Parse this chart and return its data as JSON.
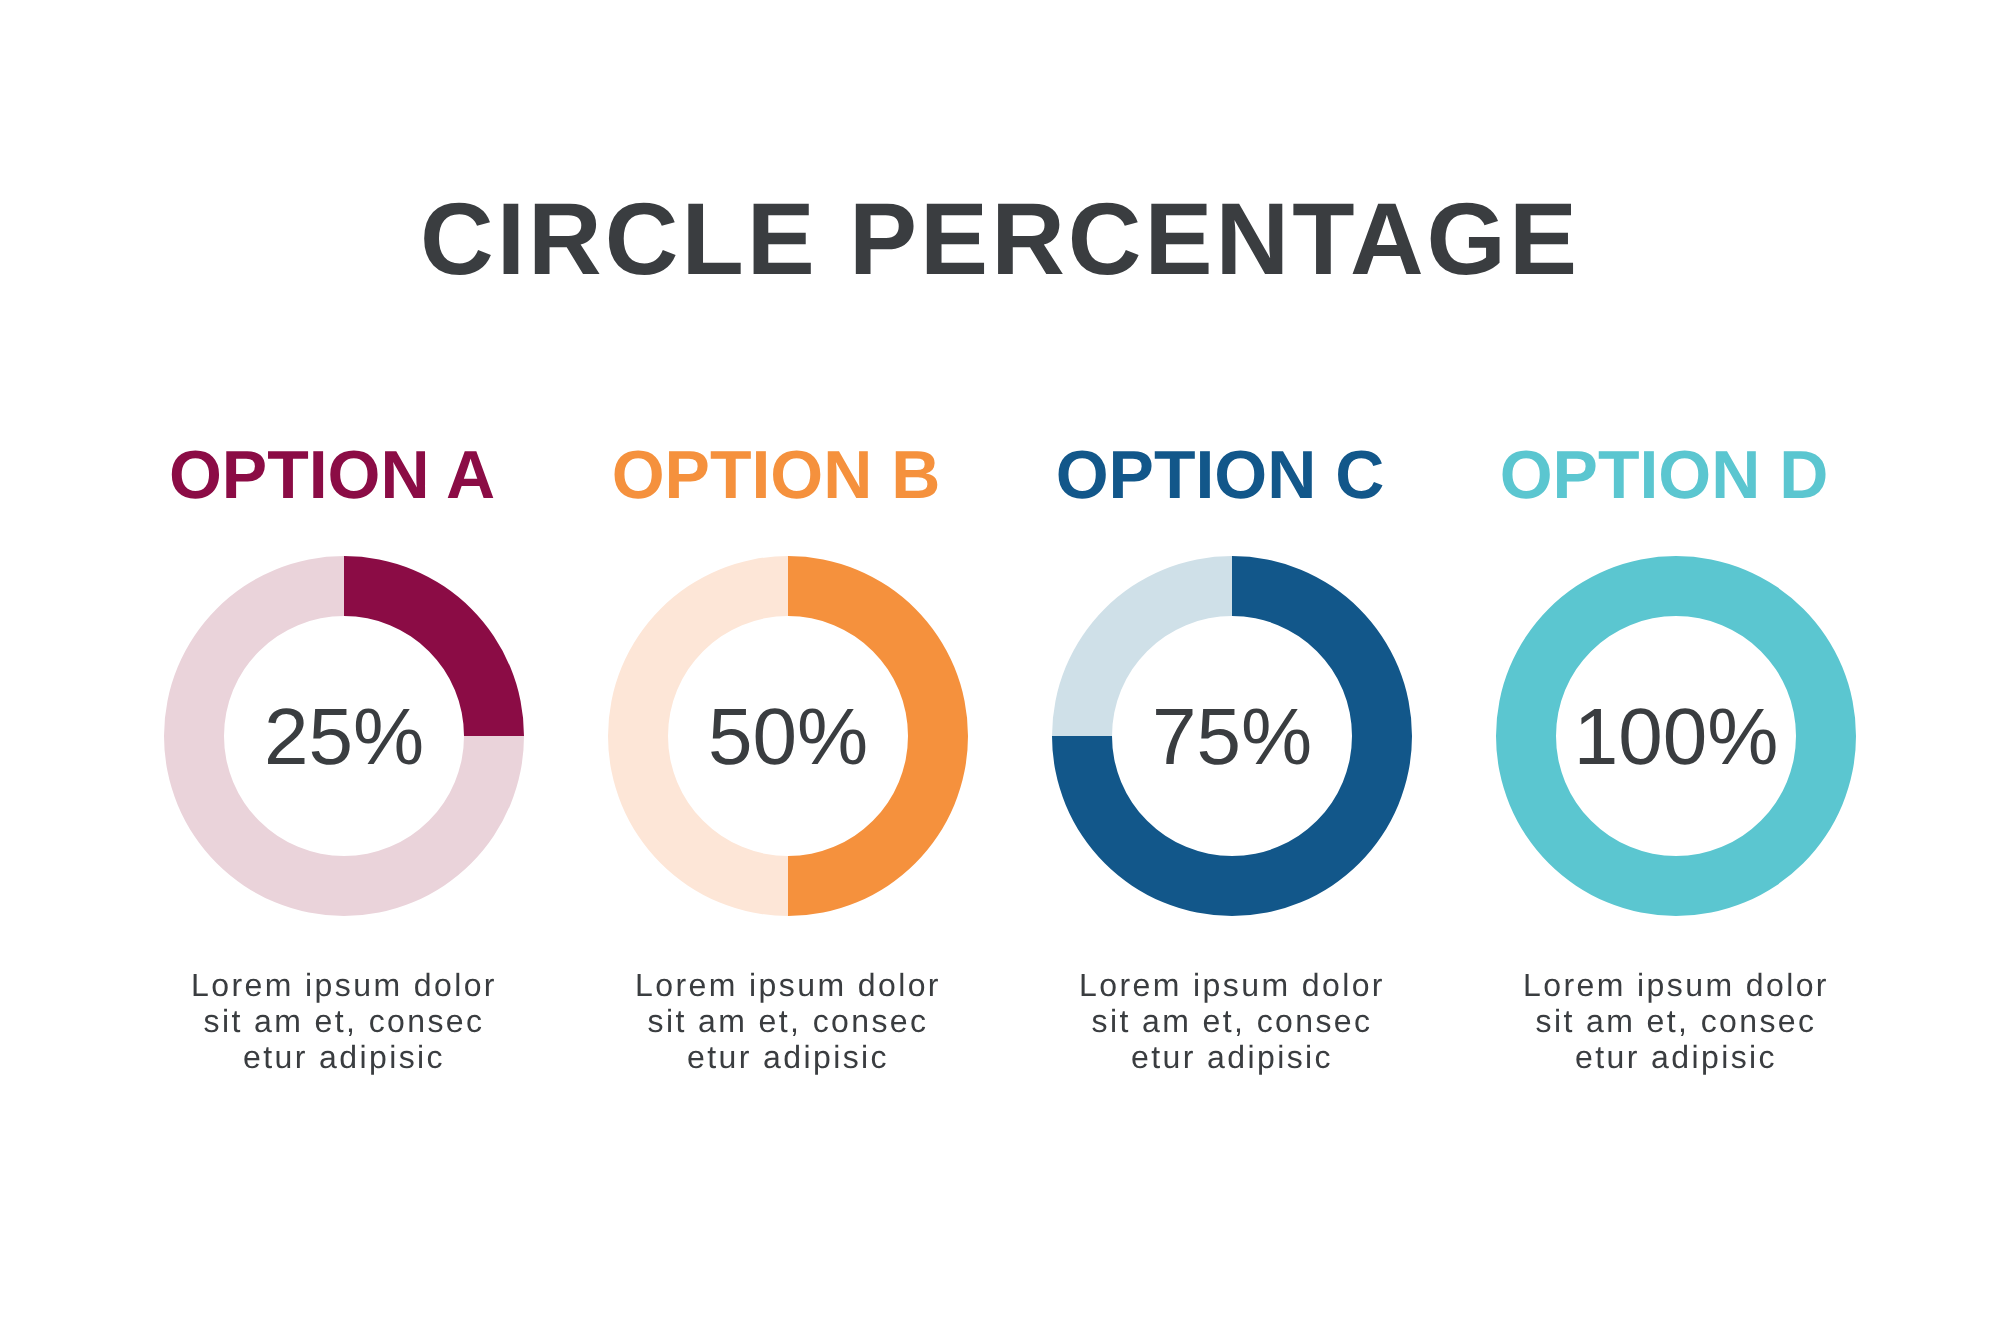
{
  "chart_data": [
    {
      "type": "other",
      "title": "CIRCLE PERCENTAGE"
    },
    {
      "type": "donut",
      "title": "OPTION A",
      "categories": [
        null,
        null
      ],
      "values": [
        25,
        75
      ],
      "colors": [
        "#8b0c45",
        "#ead3da"
      ],
      "annotations": [
        "25%",
        "Lorem ipsum dolor\nsit am et, consec\netur adipisic"
      ]
    },
    {
      "type": "donut",
      "title": "OPTION B",
      "categories": [
        null,
        null
      ],
      "values": [
        50,
        50
      ],
      "colors": [
        "#f5913d",
        "#fde6d7"
      ],
      "annotations": [
        "50%",
        "Lorem ipsum dolor\nsit am et, consec\netur adipisic"
      ]
    },
    {
      "type": "donut",
      "title": "OPTION C",
      "categories": [
        null,
        null
      ],
      "values": [
        75,
        25
      ],
      "colors": [
        "#12578a",
        "#cfe0e8"
      ],
      "annotations": [
        "75%",
        "Lorem ipsum dolor\nsit am et, consec\netur adipisic"
      ]
    },
    {
      "type": "donut",
      "title": "OPTION D",
      "categories": [
        null
      ],
      "values": [
        100
      ],
      "colors": [
        "#5bc6d0"
      ],
      "annotations": [
        "100%",
        "Lorem ipsum dolor\nsit am et, consec\netur adipisic"
      ]
    }
  ]
}
